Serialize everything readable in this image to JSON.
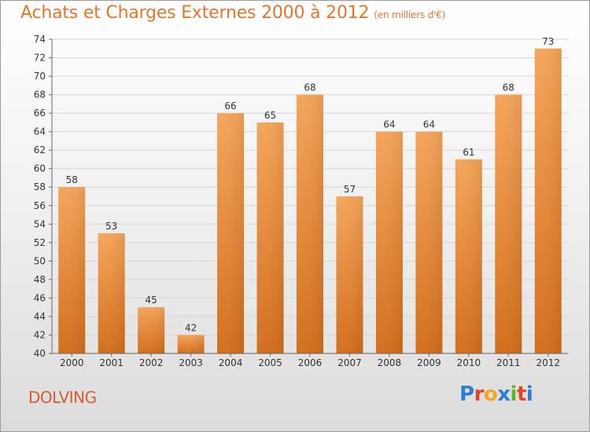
{
  "chart_title": "Achats et Charges Externes 2000 à 2012",
  "chart_subtitle": "(en milliers d'€)",
  "commune": "DOLVING",
  "logo": {
    "text": "Proxiti",
    "letters": [
      "P",
      "r",
      "o",
      "x",
      "i",
      "t",
      "i"
    ],
    "colors": [
      "#2a7fd4",
      "#e4432a",
      "#f5a623",
      "#2a7fd4",
      "#5cb82a",
      "#e4432a",
      "#2a7fd4"
    ]
  },
  "chart_data": {
    "type": "bar",
    "title": "Achats et Charges Externes 2000 à 2012",
    "subtitle": "(en milliers d'€)",
    "categories": [
      "2000",
      "2001",
      "2002",
      "2003",
      "2004",
      "2005",
      "2006",
      "2007",
      "2008",
      "2009",
      "2010",
      "2011",
      "2012"
    ],
    "values": [
      58,
      53,
      45,
      42,
      66,
      65,
      68,
      57,
      64,
      64,
      61,
      68,
      73
    ],
    "ylim": [
      40,
      74
    ],
    "yticks": [
      40,
      42,
      44,
      46,
      48,
      50,
      52,
      54,
      56,
      58,
      60,
      62,
      64,
      66,
      68,
      70,
      72,
      74
    ],
    "grid": true,
    "data_labels": true,
    "colors": {
      "bar_light": "#f7a55a",
      "bar_dark": "#d8721c",
      "grid": "#d6d6d6",
      "axis": "#666666"
    }
  }
}
